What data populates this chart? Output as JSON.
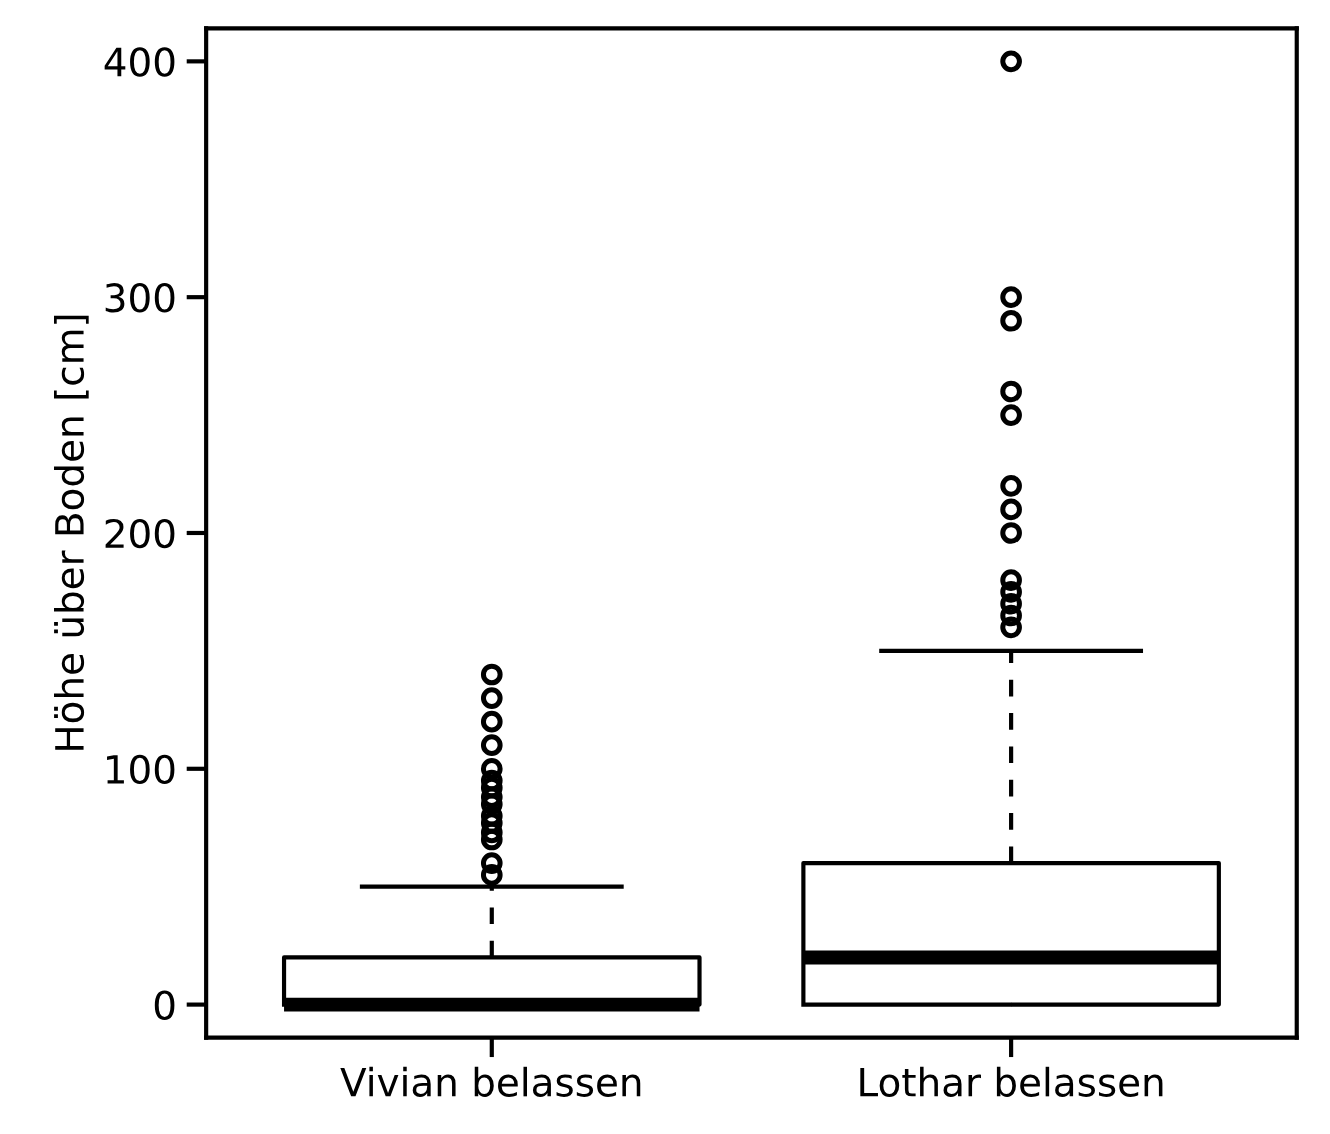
{
  "chart_data": {
    "type": "box",
    "ylabel": "Höhe über Boden [cm]",
    "categories": [
      "Vivian belassen",
      "Lothar belassen"
    ],
    "boxes": [
      {
        "q1": 0,
        "median": 0,
        "q3": 20,
        "high": 50,
        "outliers": [
          55,
          60,
          70,
          73,
          77,
          80,
          85,
          88,
          92,
          95,
          100,
          110,
          120,
          130,
          140
        ]
      },
      {
        "q1": 0,
        "median": 20,
        "q3": 60,
        "high": 150,
        "outliers": [
          160,
          165,
          170,
          175,
          180,
          200,
          210,
          220,
          250,
          260,
          290,
          300,
          400
        ]
      }
    ],
    "color": "#000000",
    "ylim": [
      -14,
      414
    ],
    "yticks": [
      0,
      100,
      200,
      300,
      400
    ],
    "grid": false
  }
}
